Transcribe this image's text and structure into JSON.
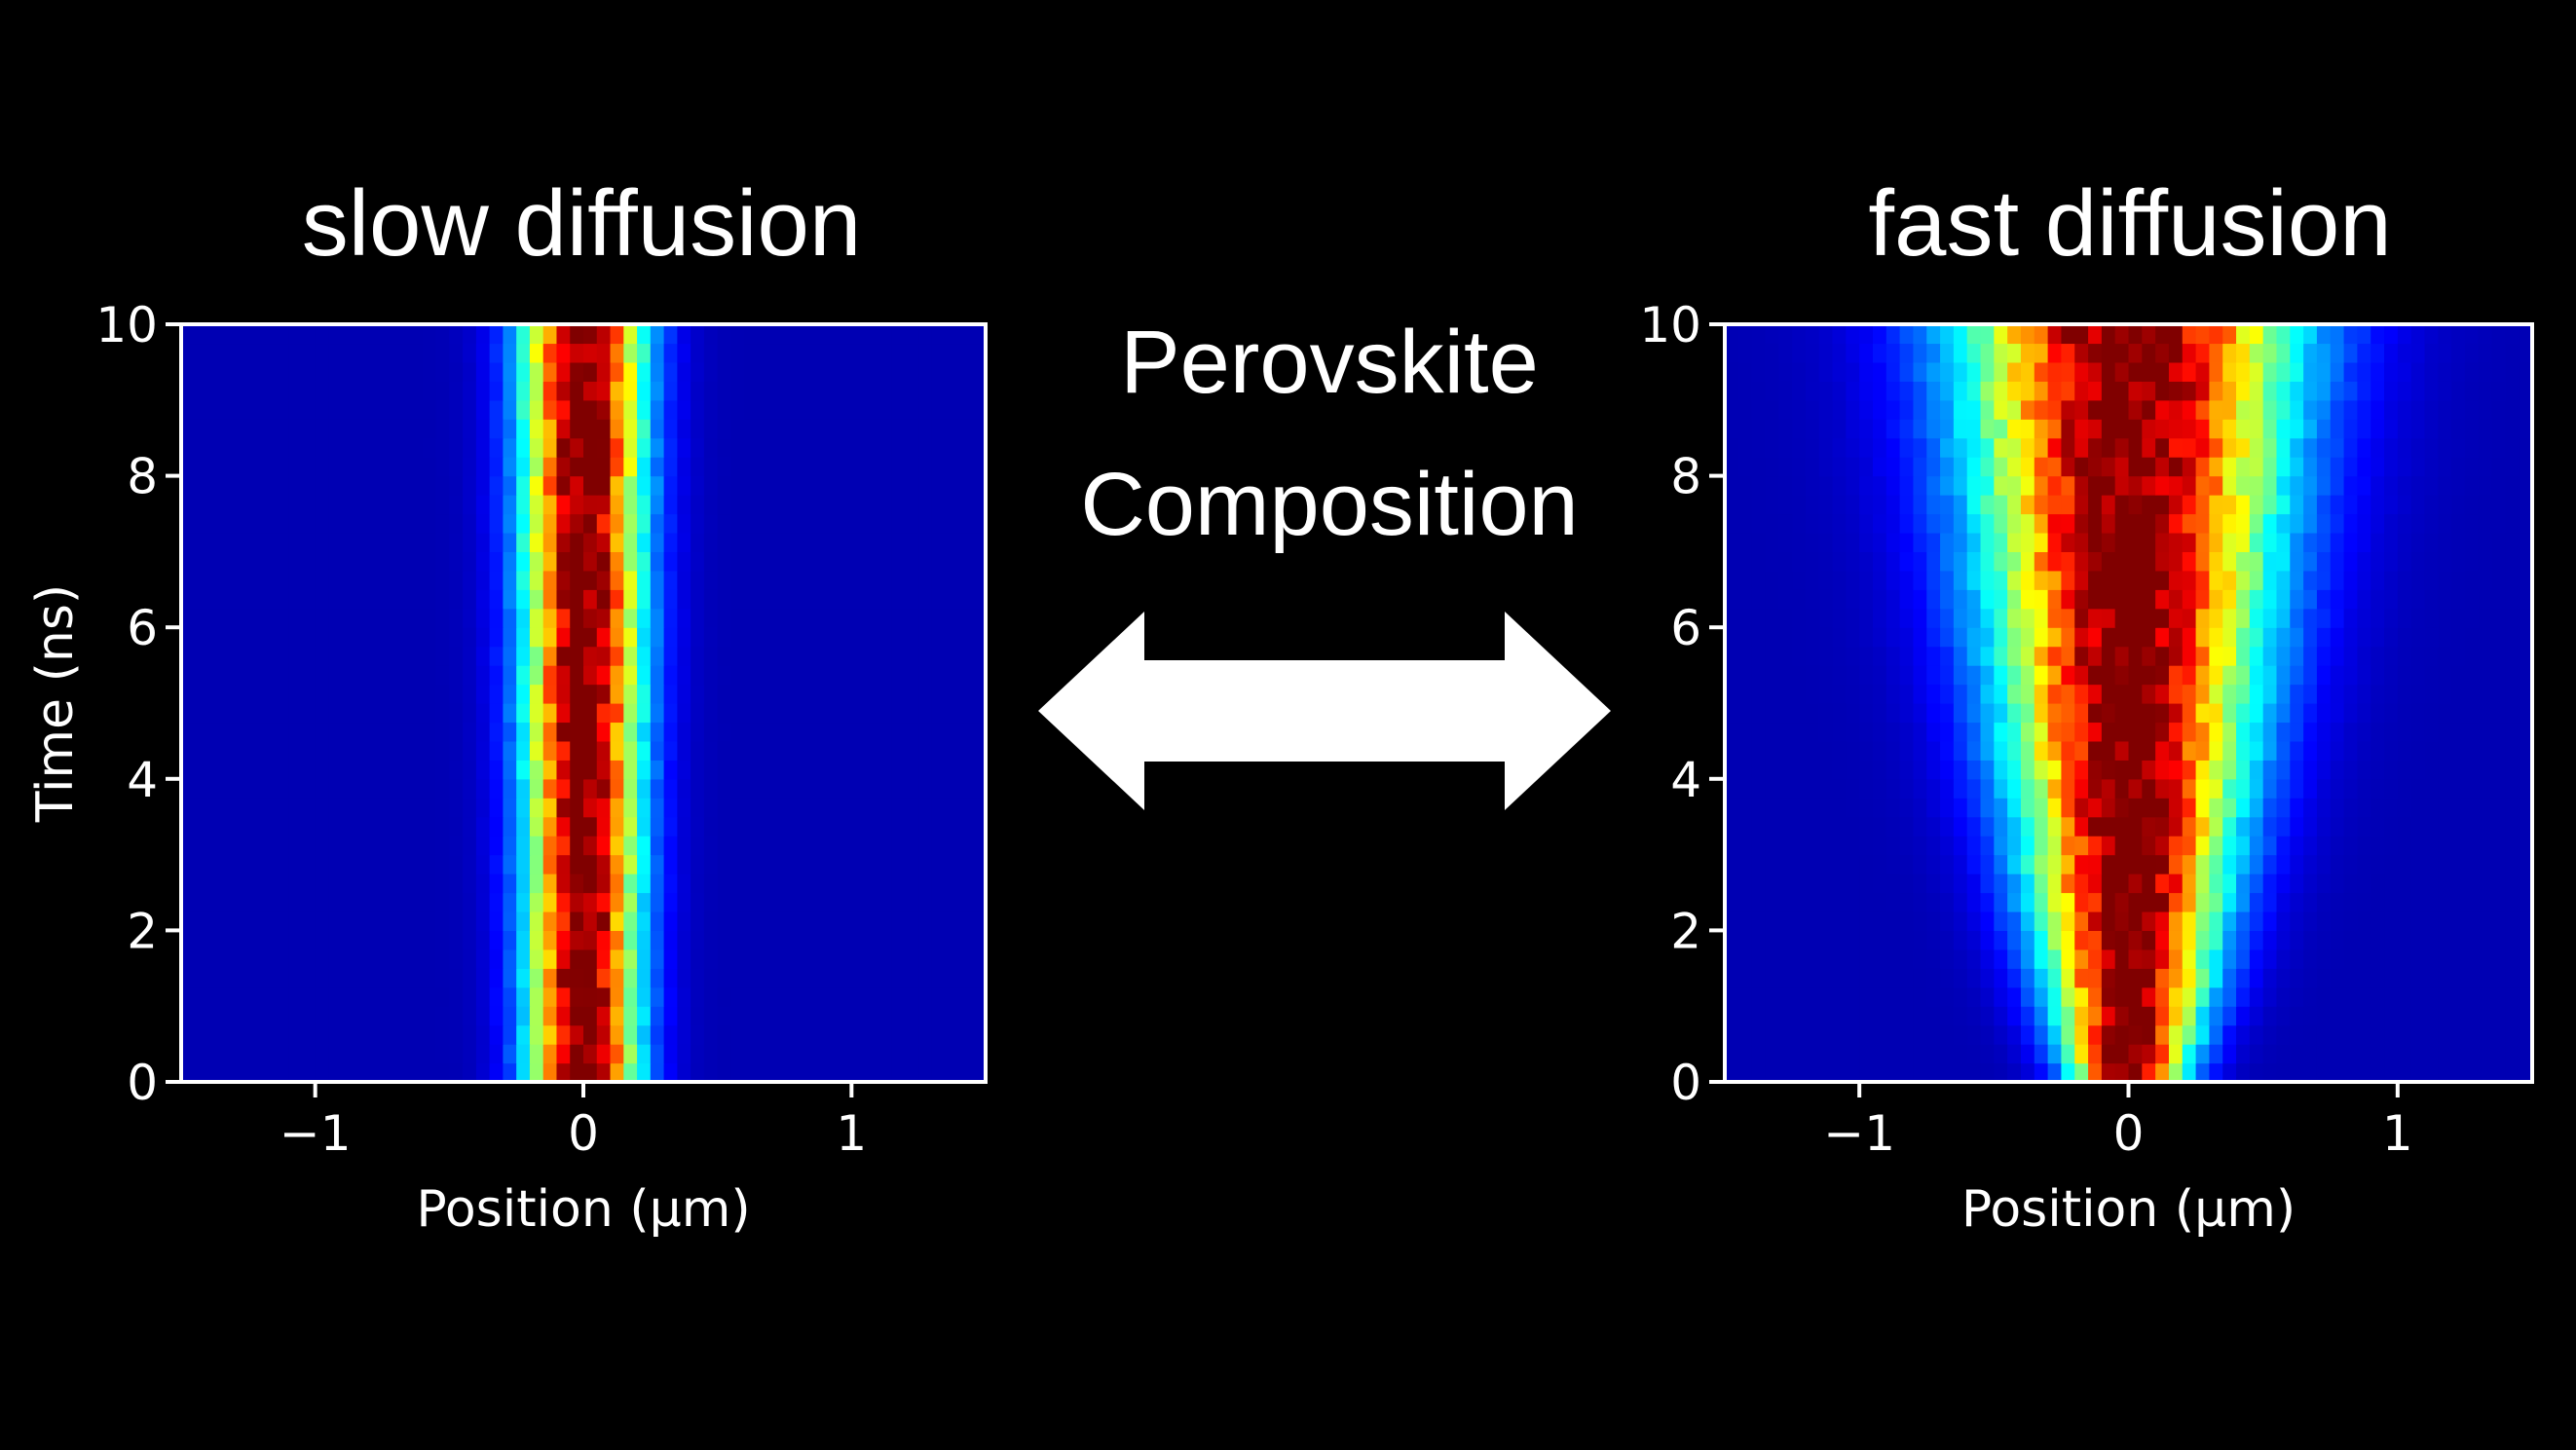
{
  "panels": [
    {
      "title": "slow diffusion"
    },
    {
      "title": "fast diffusion"
    }
  ],
  "center": {
    "line1": "Perovskite",
    "line2": "Composition"
  },
  "colors": {
    "background": "#000000",
    "text": "#ffffff",
    "arrow": "#ffffff",
    "colormap": "jet"
  },
  "arrow_icon": "double-headed-arrow-icon",
  "chart_data": [
    {
      "type": "heatmap",
      "title": "slow diffusion",
      "xlabel": "Position (μm)",
      "ylabel": "Time (ns)",
      "xlim": [
        -1.5,
        1.5
      ],
      "ylim": [
        0,
        10
      ],
      "xticks": [
        -1,
        0,
        1
      ],
      "xtick_labels": [
        "−1",
        "0",
        "1"
      ],
      "yticks": [
        0,
        2,
        4,
        6,
        8,
        10
      ],
      "ytick_labels": [
        "0",
        "2",
        "4",
        "6",
        "8",
        "10"
      ],
      "x_bins": 60,
      "t_bins": 40,
      "initial_width_um": 0.14,
      "diffusion_growth_um2_per_ns": 0.0005,
      "colormap": "jet",
      "grid": false
    },
    {
      "type": "heatmap",
      "title": "fast diffusion",
      "xlabel": "Position (μm)",
      "ylabel": "",
      "xlim": [
        -1.5,
        1.5
      ],
      "ylim": [
        0,
        10
      ],
      "xticks": [
        -1,
        0,
        1
      ],
      "xtick_labels": [
        "−1",
        "0",
        "1"
      ],
      "yticks": [
        0,
        2,
        4,
        6,
        8,
        10
      ],
      "ytick_labels": [
        "0",
        "2",
        "4",
        "6",
        "8",
        "10"
      ],
      "x_bins": 60,
      "t_bins": 40,
      "initial_width_um": 0.14,
      "diffusion_growth_um2_per_ns": 0.016,
      "colormap": "jet",
      "grid": false
    }
  ]
}
